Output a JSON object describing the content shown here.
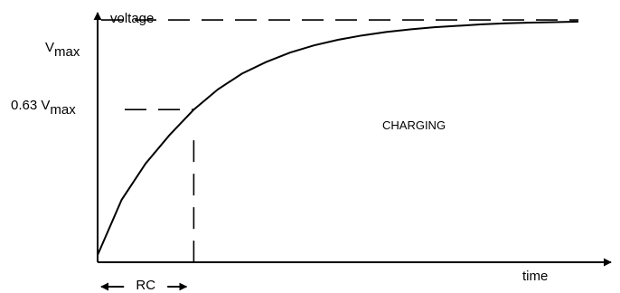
{
  "chart_data": {
    "type": "line",
    "ylabel": "voltage",
    "xlabel": "time",
    "annotation": "CHARGING",
    "ylim": [
      0,
      1.03
    ],
    "xlim": [
      0,
      5
    ],
    "y_marks": [
      {
        "prefix": "V",
        "sub": "max",
        "value": 1.0
      },
      {
        "prefix": "0.63 V",
        "sub": "max",
        "value": 0.63
      }
    ],
    "rc_marker": {
      "label": "RC",
      "value": 1
    },
    "series": [
      {
        "x": [
          0,
          0.25,
          0.5,
          0.75,
          1,
          1.25,
          1.5,
          1.75,
          2,
          2.25,
          2.5,
          2.75,
          3,
          3.25,
          3.5,
          3.75,
          4,
          4.25,
          4.5,
          4.75,
          5
        ],
        "values": [
          0.03,
          0.258,
          0.408,
          0.526,
          0.63,
          0.713,
          0.778,
          0.826,
          0.865,
          0.895,
          0.918,
          0.936,
          0.95,
          0.961,
          0.97,
          0.976,
          0.982,
          0.986,
          0.989,
          0.991,
          0.993
        ]
      }
    ],
    "grid": false,
    "legend": "none"
  }
}
